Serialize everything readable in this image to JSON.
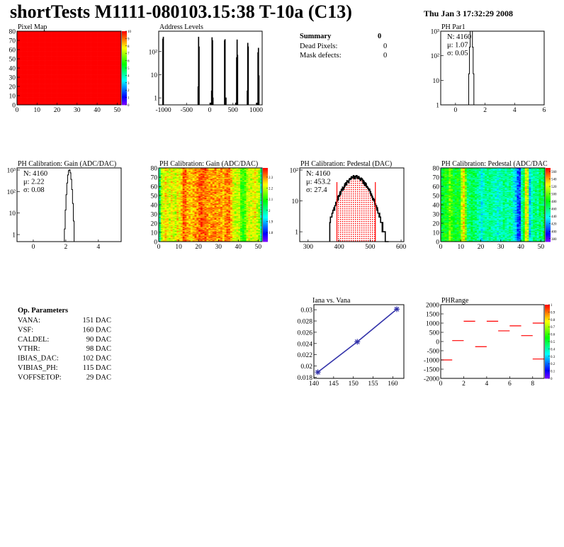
{
  "header": {
    "title": "shortTests M1111-080103.15:38 T-10a (C13)",
    "date": "Thu Jan  3 17:32:29 2008"
  },
  "summary": {
    "title": "Summary",
    "total": "0",
    "rows": [
      {
        "label": "Dead Pixels:",
        "value": "0"
      },
      {
        "label": "Mask defects:",
        "value": "0"
      }
    ]
  },
  "op_parameters": {
    "title": "Op. Parameters",
    "rows": [
      {
        "label": "VANA:",
        "value": "151 DAC"
      },
      {
        "label": "VSF:",
        "value": "160 DAC"
      },
      {
        "label": "CALDEL:",
        "value": "90 DAC"
      },
      {
        "label": "VTHR:",
        "value": "98 DAC"
      },
      {
        "label": "IBIAS_DAC:",
        "value": "102 DAC"
      },
      {
        "label": "VIBIAS_PH:",
        "value": "115 DAC"
      },
      {
        "label": "VOFFSETOP:",
        "value": "29 DAC"
      }
    ]
  },
  "colors": {
    "palette": "rainbow",
    "fit": "#ff0000",
    "line": "#3333aa"
  },
  "chart_data": [
    {
      "id": "pixelmap",
      "type": "heatmap",
      "title": "Pixel Map",
      "xlim": [
        0,
        52
      ],
      "ylim": [
        0,
        80
      ],
      "zlim": [
        0,
        10
      ],
      "xticks": [
        0,
        10,
        20,
        30,
        40,
        50
      ],
      "yticks": [
        0,
        10,
        20,
        30,
        40,
        50,
        60,
        70,
        80
      ],
      "zticks": [
        0,
        1,
        2,
        3,
        4,
        5,
        6,
        7,
        8,
        9,
        10
      ],
      "uniform_value": 10
    },
    {
      "id": "address",
      "type": "bar",
      "title": "Address Levels",
      "xlim": [
        -1100,
        1130
      ],
      "ylim": [
        0.5,
        760
      ],
      "ylog": true,
      "xticks": [
        -1000,
        -500,
        0,
        500,
        1000
      ],
      "yticks": [
        {
          "v": 1,
          "l": "1"
        },
        {
          "v": 10,
          "l": "10"
        },
        {
          "v": 100,
          "l": "10²"
        }
      ],
      "bins": [
        [
          -1010,
          350
        ],
        [
          -1000,
          420
        ],
        [
          -250,
          3
        ],
        [
          -240,
          420
        ],
        [
          -230,
          160
        ],
        [
          20,
          0.6
        ],
        [
          40,
          2
        ],
        [
          50,
          400
        ],
        [
          60,
          300
        ],
        [
          70,
          1
        ],
        [
          320,
          300
        ],
        [
          330,
          330
        ],
        [
          350,
          1
        ],
        [
          560,
          0.6
        ],
        [
          580,
          55
        ],
        [
          590,
          320
        ],
        [
          600,
          70
        ],
        [
          810,
          2
        ],
        [
          820,
          230
        ],
        [
          830,
          160
        ],
        [
          1020,
          0.6
        ],
        [
          1040,
          90
        ],
        [
          1050,
          140
        ],
        [
          1060,
          9
        ]
      ]
    },
    {
      "id": "phpar1",
      "type": "bar",
      "title": "PH Par1",
      "xlim": [
        -1,
        6
      ],
      "ylim": [
        1,
        1000
      ],
      "ylog": true,
      "xticks": [
        0,
        2,
        4,
        6
      ],
      "yticks": [
        {
          "v": 1,
          "l": "1"
        },
        {
          "v": 10,
          "l": "10"
        },
        {
          "v": 100,
          "l": "10²"
        },
        {
          "v": 1000,
          "l": "10³"
        }
      ],
      "stats": {
        "n": "N: 4160",
        "mean": "μ: 1.07",
        "sigma": "σ: 0.05"
      },
      "entries": 4160,
      "mean": 1.07,
      "sigma": 0.05
    },
    {
      "id": "gainhist",
      "type": "bar",
      "title": "PH Calibration: Gain (ADC/DAC)",
      "xlim": [
        -1,
        5.4
      ],
      "ylim": [
        0.47,
        1250
      ],
      "ylog": true,
      "xticks": [
        0,
        2,
        4
      ],
      "yticks": [
        {
          "v": 1,
          "l": "1"
        },
        {
          "v": 10,
          "l": "10"
        },
        {
          "v": 100,
          "l": "10²"
        },
        {
          "v": 1000,
          "l": "10³"
        }
      ],
      "stats": {
        "n": "N: 4160",
        "mean": "μ: 2.22",
        "sigma": "σ: 0.08"
      },
      "entries": 4160,
      "mean": 2.22,
      "sigma": 0.08
    },
    {
      "id": "gainmap",
      "type": "heatmap",
      "title": "PH Calibration: Gain (ADC/DAC)",
      "xlim": [
        0,
        52
      ],
      "ylim": [
        0,
        80
      ],
      "zlim": [
        1.717,
        2.383
      ],
      "xticks": [
        0,
        10,
        20,
        30,
        40,
        50
      ],
      "yticks": [
        0,
        10,
        20,
        30,
        40,
        50,
        60,
        70,
        80
      ],
      "zticks": [
        1.8,
        1.9,
        2,
        2.1,
        2.2,
        2.3
      ],
      "column_means": [
        2.02,
        2.2,
        2.22,
        2.25,
        2.22,
        2.2,
        2.24,
        2.22,
        2.2,
        2.25,
        2.23,
        2.27,
        2.33,
        2.32,
        2.28,
        2.27,
        2.26,
        2.28,
        2.3,
        2.3,
        2.33,
        2.34,
        2.32,
        2.33,
        2.3,
        2.29,
        2.3,
        2.3,
        2.31,
        2.28,
        2.3,
        2.29,
        2.27,
        2.3,
        2.31,
        2.31,
        2.27,
        2.22,
        2.2,
        2.21,
        2.2,
        2.12,
        2.1,
        2.14,
        2.2,
        2.22,
        2.2,
        2.22,
        2.24,
        2.2,
        2.18,
        2.0
      ]
    },
    {
      "id": "pedhist",
      "type": "bar",
      "title": "PH Calibration: Pedestal (DAC)",
      "xlim": [
        273,
        609
      ],
      "ylim": [
        0.48,
        117
      ],
      "ylog": true,
      "xticks": [
        300,
        400,
        500,
        600
      ],
      "yticks": [
        {
          "v": 1,
          "l": "1"
        },
        {
          "v": 10,
          "l": "10"
        },
        {
          "v": 100,
          "l": "10²"
        }
      ],
      "stats": {
        "n": "N: 4160",
        "mean": "μ: 453.2",
        "sigma": "σ: 27.4"
      },
      "entries": 4160,
      "mean": 453.2,
      "sigma": 27.4,
      "fit_range": [
        393,
        517
      ]
    },
    {
      "id": "pedmap",
      "type": "heatmap",
      "title": "PH Calibration: Pedestal (ADC/DAC",
      "xlim": [
        0,
        52
      ],
      "ylim": [
        0,
        80
      ],
      "zlim": [
        372,
        569.5
      ],
      "xticks": [
        0,
        10,
        20,
        30,
        40,
        50
      ],
      "yticks": [
        0,
        10,
        20,
        30,
        40,
        50,
        60,
        70,
        80
      ],
      "zticks": [
        380,
        400,
        420,
        440,
        460,
        480,
        500,
        520,
        540,
        560
      ],
      "column_means": [
        470,
        478,
        482,
        480,
        500,
        490,
        478,
        475,
        480,
        478,
        515,
        530,
        500,
        460,
        462,
        470,
        465,
        462,
        458,
        452,
        440,
        450,
        455,
        458,
        460,
        455,
        450,
        452,
        445,
        448,
        450,
        460,
        455,
        450,
        458,
        452,
        440,
        430,
        410,
        405,
        455,
        470,
        525,
        515,
        430,
        450,
        458,
        462,
        455,
        470,
        462,
        470
      ]
    },
    {
      "id": "iana",
      "type": "line",
      "title": "Iana vs. Vana",
      "xlim": [
        140,
        162.8
      ],
      "ylim": [
        0.0178,
        0.0309
      ],
      "xticks": [
        140,
        145,
        150,
        155,
        160
      ],
      "yticks": [
        0.018,
        0.02,
        0.022,
        0.024,
        0.026,
        0.028,
        0.03
      ],
      "x": [
        141,
        151,
        161
      ],
      "y": [
        0.0189,
        0.0243,
        0.0301
      ]
    },
    {
      "id": "phrange",
      "type": "heatmap",
      "title": "PHRange",
      "xlim": [
        0,
        9
      ],
      "ylim": [
        -2000,
        2000
      ],
      "zlim": [
        0,
        1
      ],
      "xticks": [
        0,
        2,
        4,
        6,
        8
      ],
      "yticks": [
        2000,
        1500,
        1000,
        500,
        0,
        -500,
        -1000,
        -1500,
        -2000
      ],
      "zticks": [
        0,
        0.1,
        0.2,
        0.3,
        0.4,
        0.5,
        0.6,
        0.7,
        0.8,
        0.9,
        1
      ],
      "segments": [
        [
          0,
          -1000
        ],
        [
          1,
          50
        ],
        [
          2,
          1100
        ],
        [
          3,
          -280
        ],
        [
          4,
          1100
        ],
        [
          5,
          580
        ],
        [
          6,
          850
        ],
        [
          7,
          320
        ],
        [
          8,
          1000
        ],
        [
          8,
          -950
        ]
      ]
    }
  ]
}
